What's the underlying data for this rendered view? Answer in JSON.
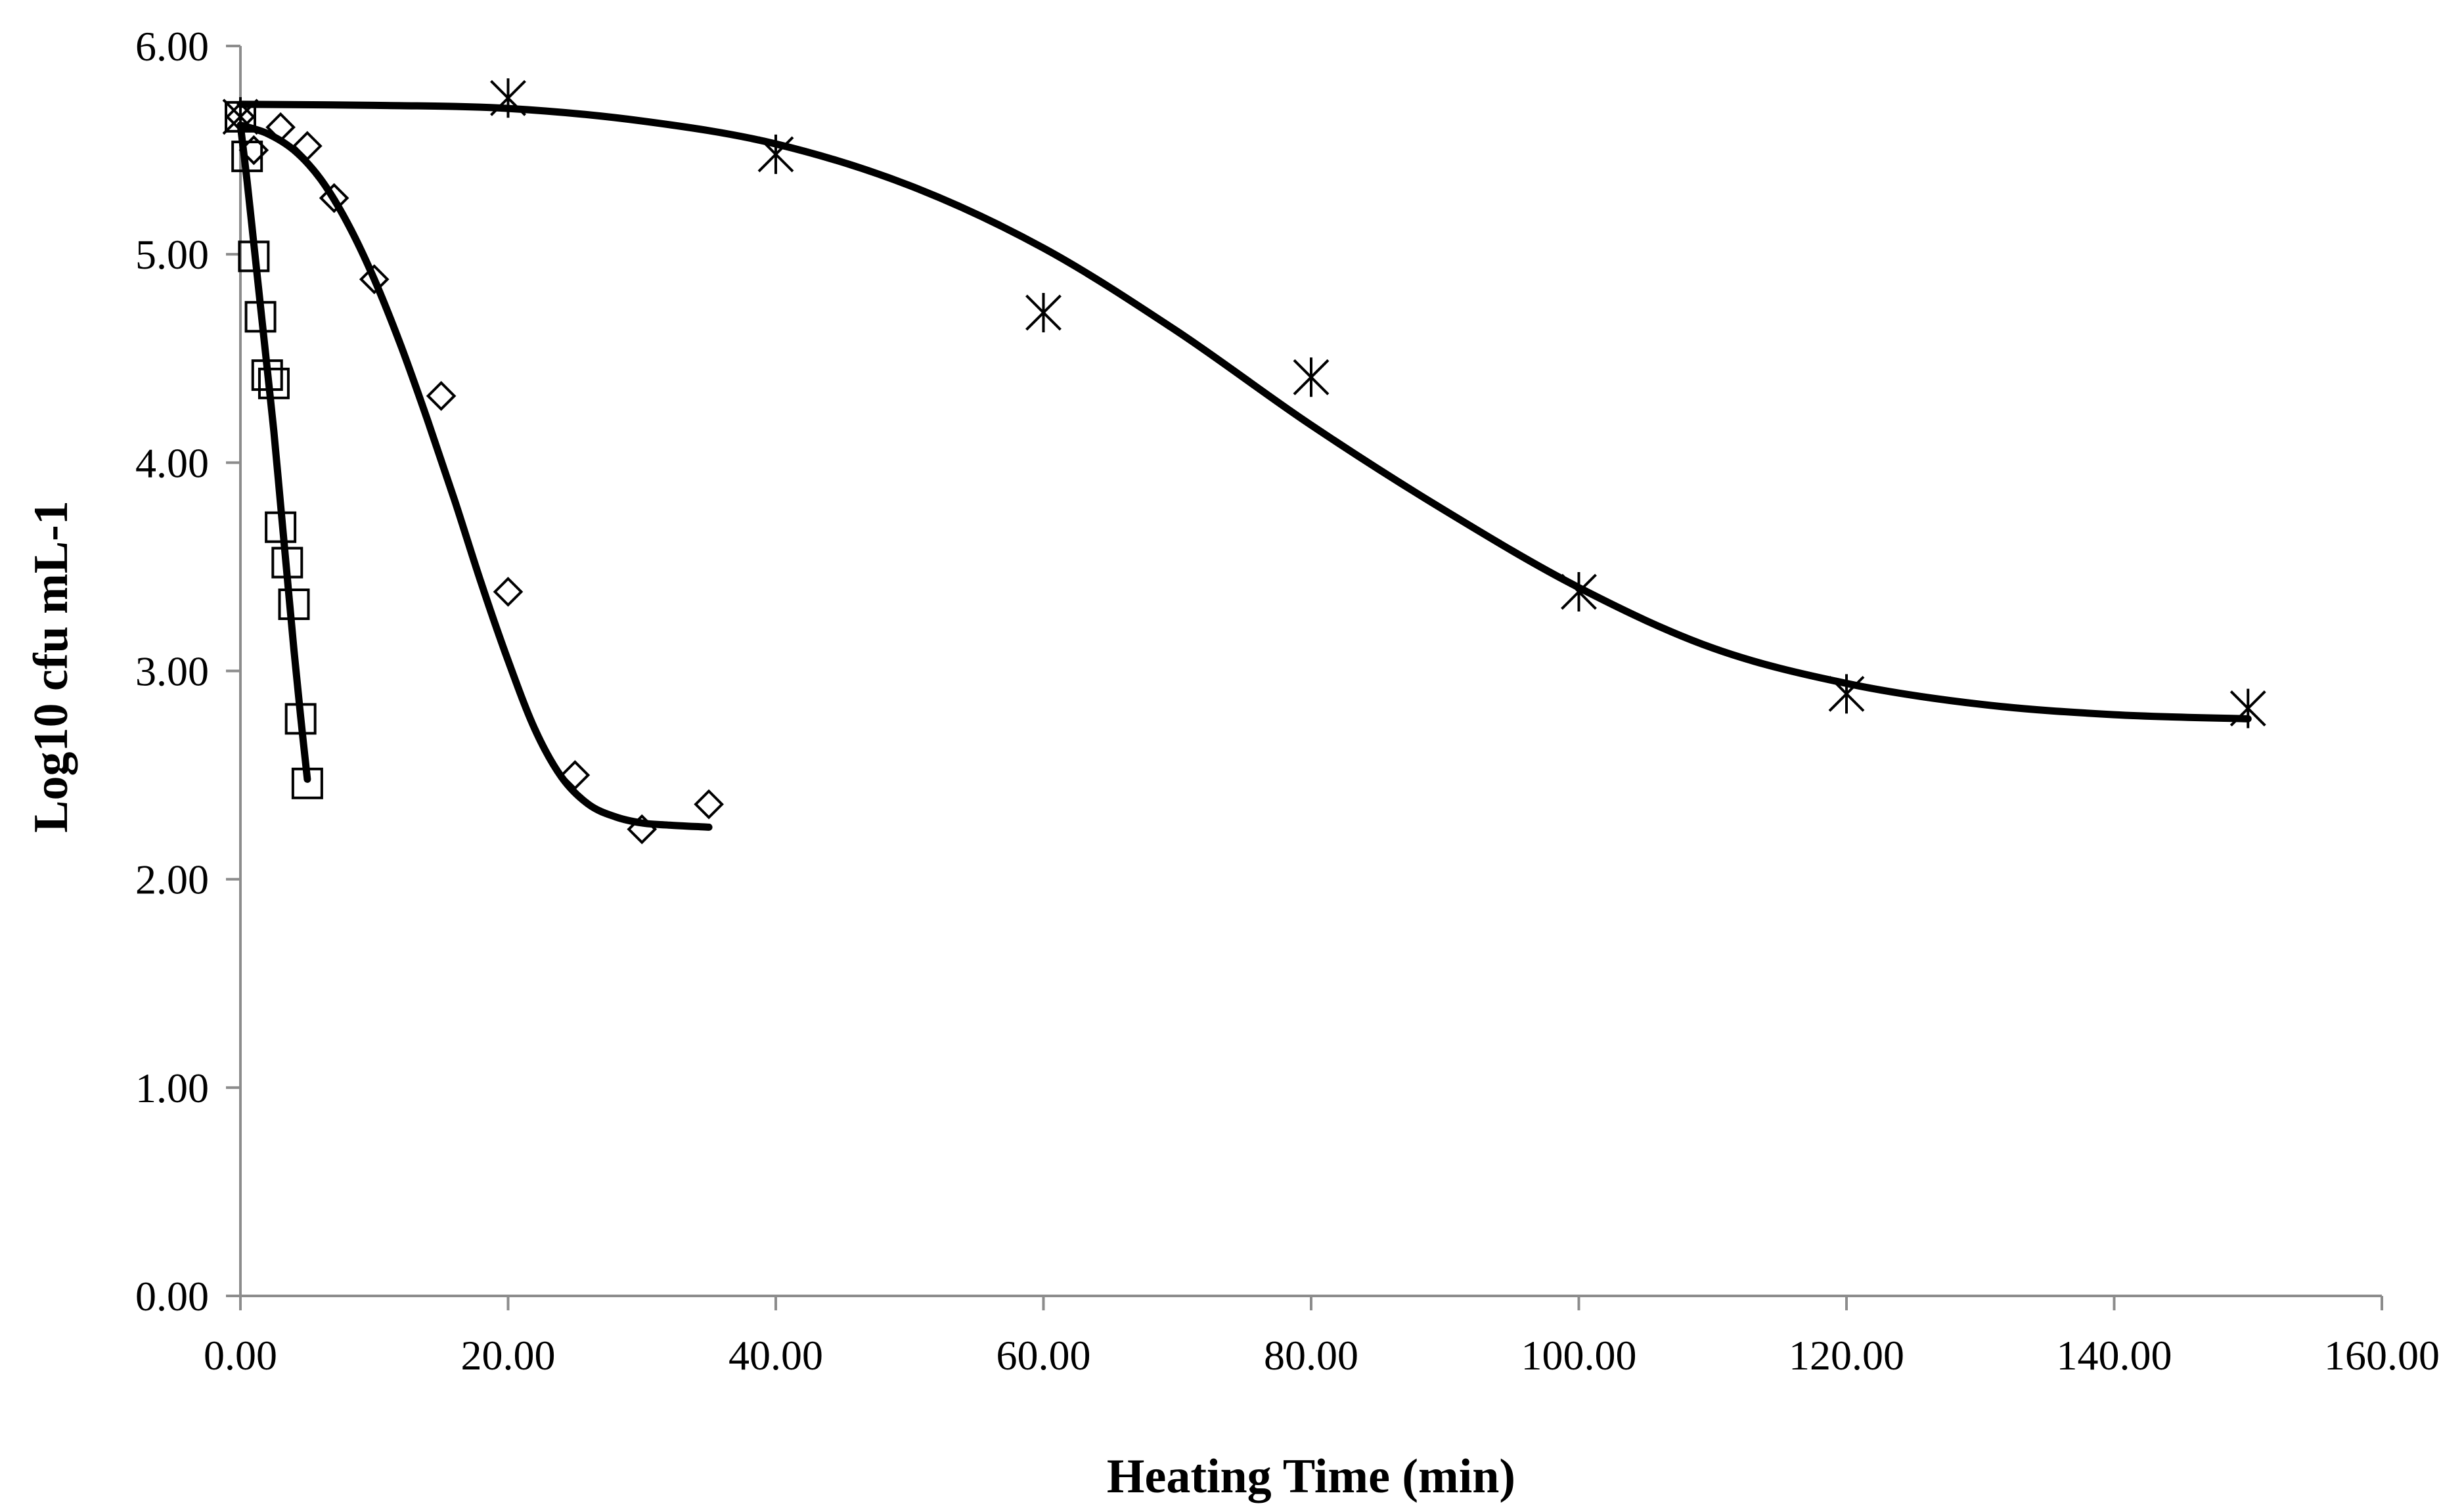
{
  "chart_data": {
    "type": "scatter",
    "title": "",
    "xlabel": "Heating  Time (min)",
    "ylabel": "Log10 cfu mL-1",
    "xlim": [
      0,
      160
    ],
    "ylim": [
      0,
      6
    ],
    "x_ticks": [
      "0.00",
      "20.00",
      "40.00",
      "60.00",
      "80.00",
      "100.00",
      "120.00",
      "140.00",
      "160.00"
    ],
    "y_ticks": [
      "0.00",
      "1.00",
      "2.00",
      "3.00",
      "4.00",
      "5.00",
      "6.00"
    ],
    "grid": false,
    "legend": "none",
    "colors": {
      "axis": "#8c8c8c",
      "marks": "#000000",
      "fit_line": "#000000"
    },
    "series": [
      {
        "name": "square-series",
        "marker": "square",
        "points": [
          {
            "x": 0,
            "y": 5.66
          },
          {
            "x": 0.5,
            "y": 5.47
          },
          {
            "x": 1,
            "y": 4.99
          },
          {
            "x": 1.5,
            "y": 4.7
          },
          {
            "x": 2,
            "y": 4.42
          },
          {
            "x": 2.5,
            "y": 4.38
          },
          {
            "x": 3,
            "y": 3.69
          },
          {
            "x": 3.5,
            "y": 3.52
          },
          {
            "x": 4,
            "y": 3.32
          },
          {
            "x": 4.5,
            "y": 2.77
          },
          {
            "x": 5,
            "y": 2.46
          }
        ],
        "fit_curve": [
          {
            "x": 0,
            "y": 5.62
          },
          {
            "x": 0.5,
            "y": 5.35
          },
          {
            "x": 1,
            "y": 5.05
          },
          {
            "x": 1.5,
            "y": 4.75
          },
          {
            "x": 2,
            "y": 4.45
          },
          {
            "x": 2.5,
            "y": 4.15
          },
          {
            "x": 3,
            "y": 3.8
          },
          {
            "x": 3.5,
            "y": 3.45
          },
          {
            "x": 4,
            "y": 3.1
          },
          {
            "x": 4.5,
            "y": 2.78
          },
          {
            "x": 5,
            "y": 2.48
          }
        ]
      },
      {
        "name": "diamond-series",
        "marker": "diamond",
        "points": [
          {
            "x": 0,
            "y": 5.66
          },
          {
            "x": 1,
            "y": 5.5
          },
          {
            "x": 3,
            "y": 5.61
          },
          {
            "x": 5,
            "y": 5.52
          },
          {
            "x": 7,
            "y": 5.27
          },
          {
            "x": 10,
            "y": 4.88
          },
          {
            "x": 15,
            "y": 4.32
          },
          {
            "x": 20,
            "y": 3.38
          },
          {
            "x": 25,
            "y": 2.5
          },
          {
            "x": 30,
            "y": 2.24
          },
          {
            "x": 35,
            "y": 2.36
          }
        ],
        "fit_curve": [
          {
            "x": 0,
            "y": 5.62
          },
          {
            "x": 2,
            "y": 5.58
          },
          {
            "x": 4,
            "y": 5.5
          },
          {
            "x": 6,
            "y": 5.36
          },
          {
            "x": 8,
            "y": 5.15
          },
          {
            "x": 10,
            "y": 4.88
          },
          {
            "x": 12,
            "y": 4.56
          },
          {
            "x": 14,
            "y": 4.2
          },
          {
            "x": 16,
            "y": 3.82
          },
          {
            "x": 18,
            "y": 3.42
          },
          {
            "x": 20,
            "y": 3.05
          },
          {
            "x": 22,
            "y": 2.72
          },
          {
            "x": 24,
            "y": 2.49
          },
          {
            "x": 26,
            "y": 2.36
          },
          {
            "x": 28,
            "y": 2.3
          },
          {
            "x": 30,
            "y": 2.27
          },
          {
            "x": 32,
            "y": 2.26
          },
          {
            "x": 35,
            "y": 2.25
          }
        ]
      },
      {
        "name": "asterisk-series",
        "marker": "asterisk",
        "points": [
          {
            "x": 0,
            "y": 5.66
          },
          {
            "x": 20,
            "y": 5.75
          },
          {
            "x": 40,
            "y": 5.48
          },
          {
            "x": 60,
            "y": 4.72
          },
          {
            "x": 80,
            "y": 4.41
          },
          {
            "x": 100,
            "y": 3.38
          },
          {
            "x": 120,
            "y": 2.89
          },
          {
            "x": 150,
            "y": 2.82
          }
        ],
        "fit_curve": [
          {
            "x": 0,
            "y": 5.72
          },
          {
            "x": 10,
            "y": 5.715
          },
          {
            "x": 20,
            "y": 5.7
          },
          {
            "x": 30,
            "y": 5.64
          },
          {
            "x": 40,
            "y": 5.53
          },
          {
            "x": 50,
            "y": 5.33
          },
          {
            "x": 60,
            "y": 5.03
          },
          {
            "x": 70,
            "y": 4.63
          },
          {
            "x": 80,
            "y": 4.18
          },
          {
            "x": 90,
            "y": 3.77
          },
          {
            "x": 100,
            "y": 3.4
          },
          {
            "x": 110,
            "y": 3.11
          },
          {
            "x": 120,
            "y": 2.94
          },
          {
            "x": 130,
            "y": 2.84
          },
          {
            "x": 140,
            "y": 2.79
          },
          {
            "x": 150,
            "y": 2.77
          }
        ]
      }
    ]
  }
}
